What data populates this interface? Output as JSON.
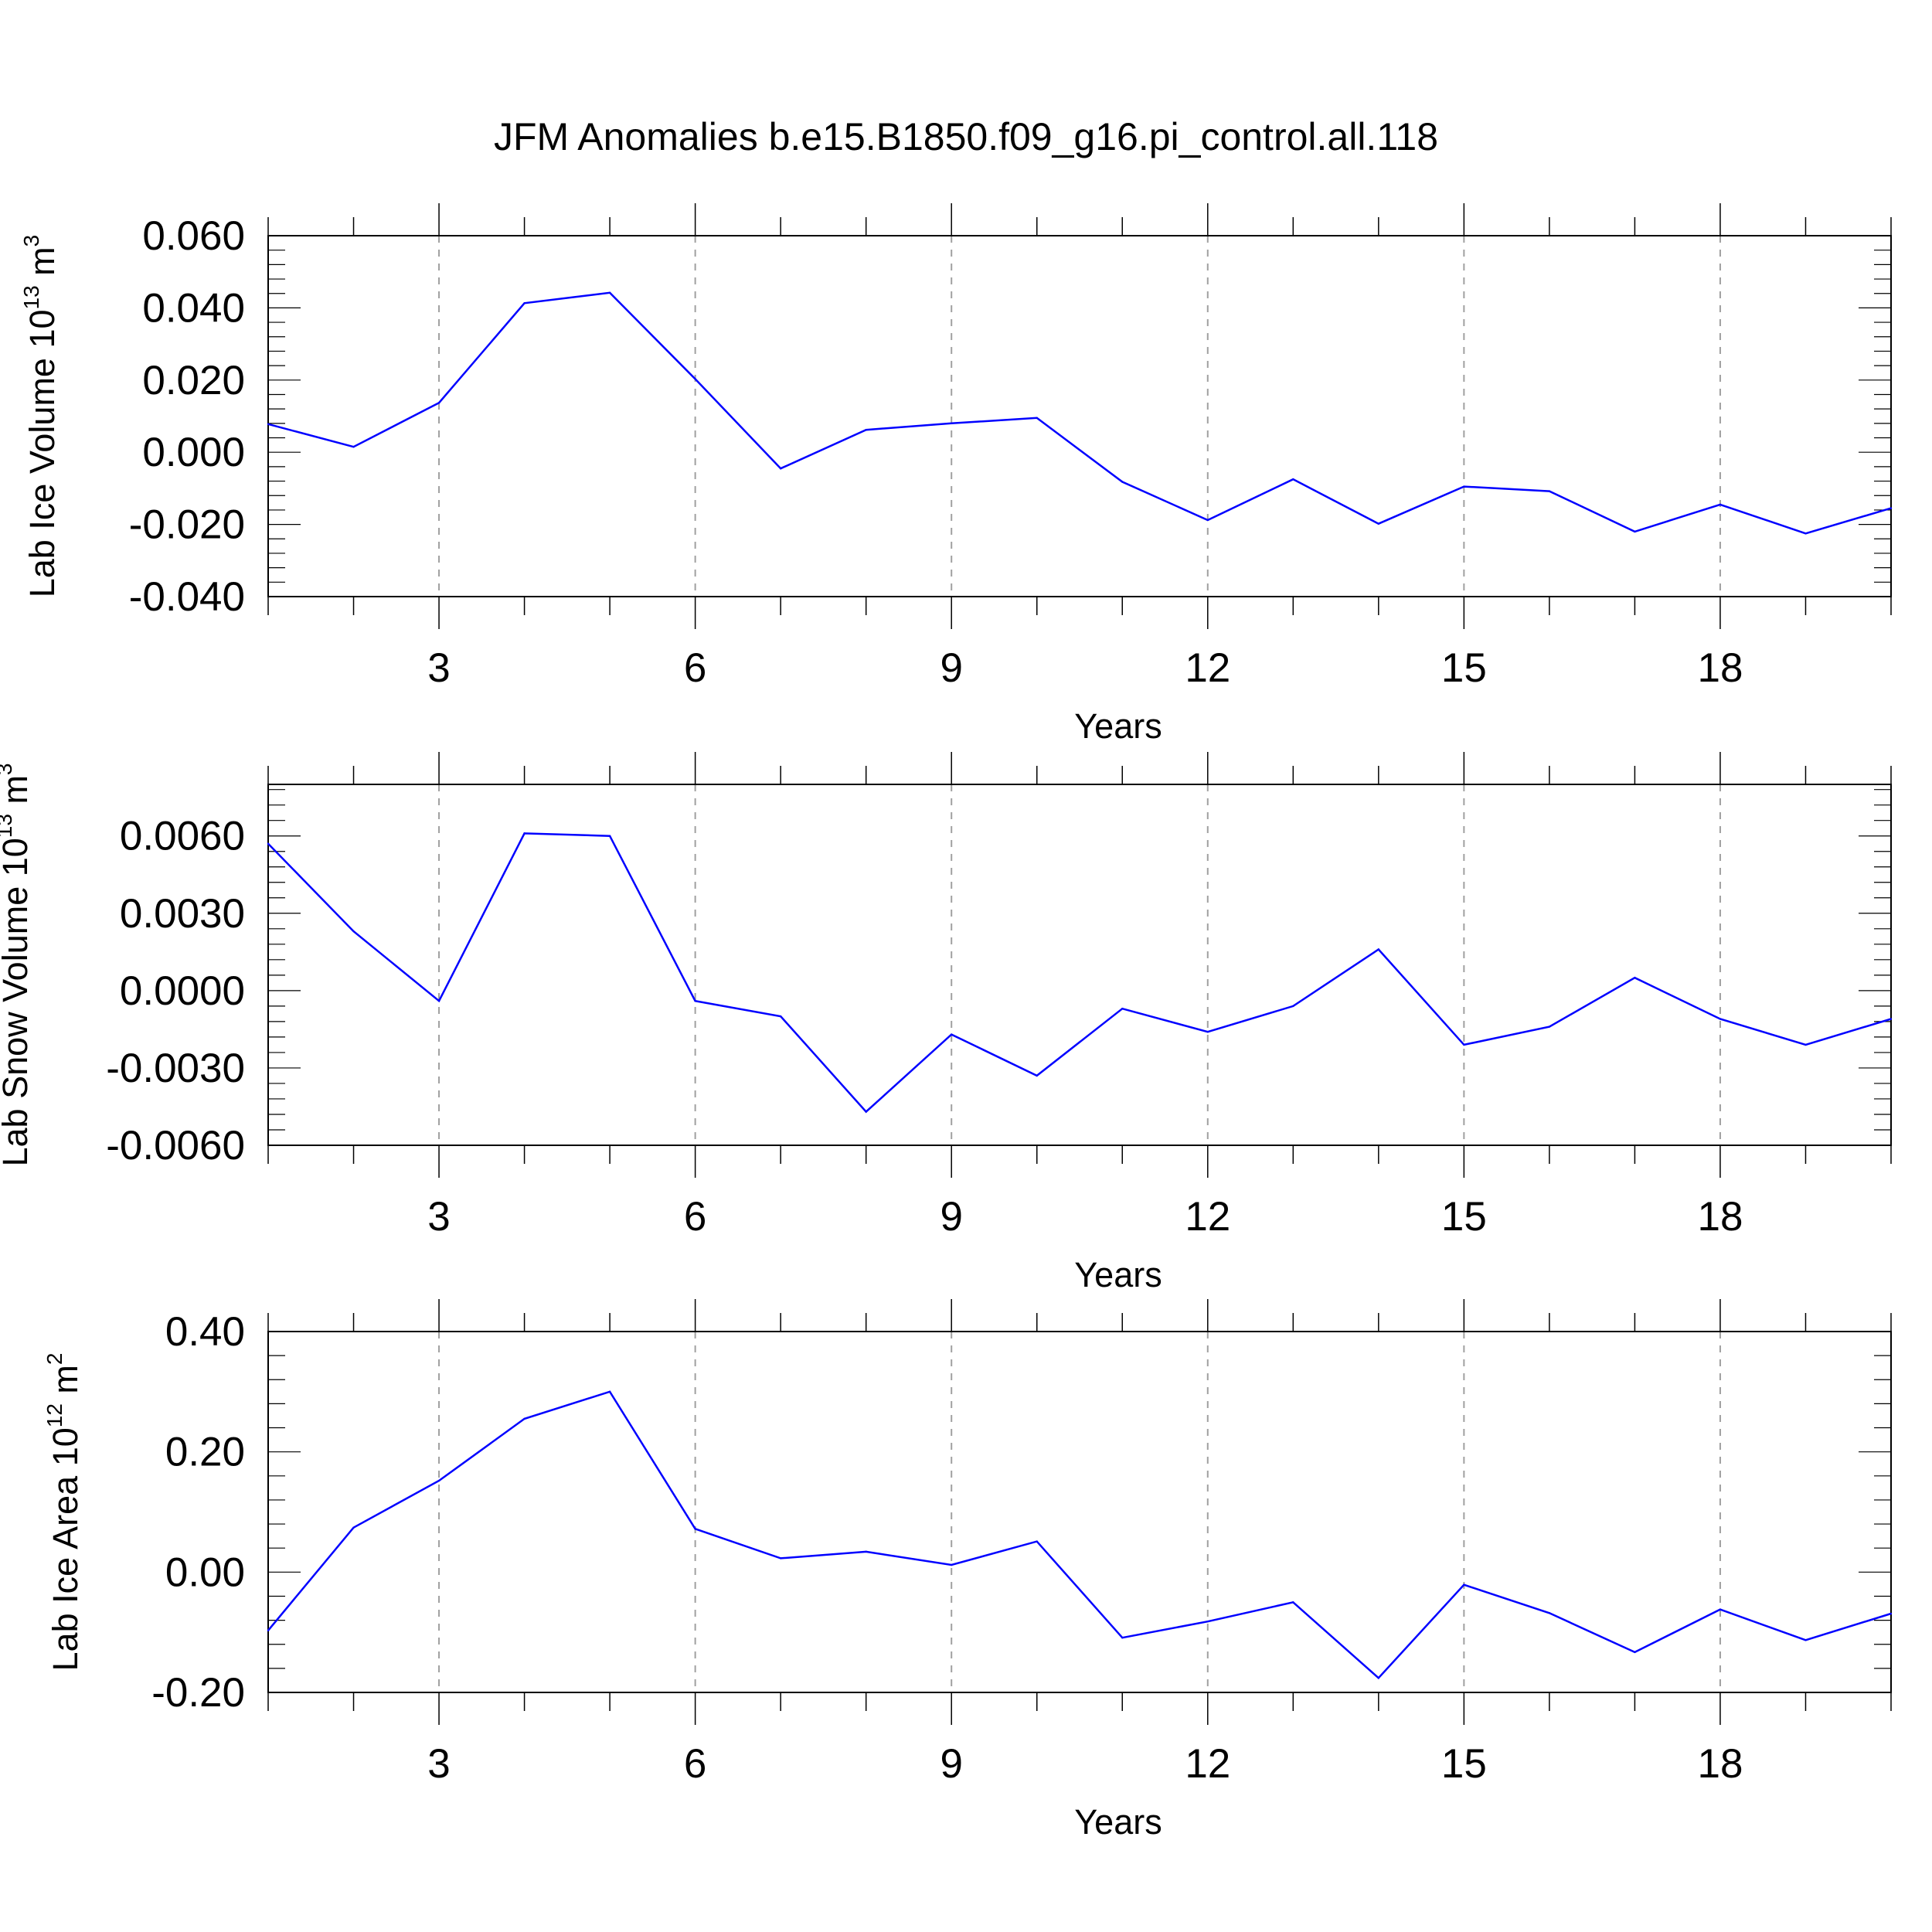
{
  "title": "JFM Anomalies b.e15.B1850.f09_g16.pi_control.all.118",
  "colors": {
    "line": "#0000ff",
    "axis": "#000000",
    "grid": "#a0a0a0"
  },
  "chart_data": [
    {
      "type": "line",
      "xlabel": "Years",
      "ylabel": {
        "prefix": "Lab Ice Volume 10",
        "exponent": "13",
        "unit": " m",
        "unit_exponent": "3"
      },
      "xlim": [
        1,
        20
      ],
      "ylim": [
        -0.04,
        0.06
      ],
      "x_ticks": [
        3,
        6,
        9,
        12,
        15,
        18
      ],
      "y_ticks": [
        -0.04,
        -0.02,
        0.0,
        0.02,
        0.04,
        0.06
      ],
      "y_tick_labels": [
        "-0.040",
        "-0.020",
        "0.000",
        "0.020",
        "0.040",
        "0.060"
      ],
      "grid": "vertical dashed at major x ticks",
      "x": [
        1,
        2,
        3,
        4,
        5,
        6,
        7,
        8,
        9,
        10,
        11,
        12,
        13,
        14,
        15,
        16,
        17,
        18,
        19,
        20
      ],
      "series": [
        {
          "values": [
            0.0078,
            0.0015,
            0.0137,
            0.0413,
            0.0442,
            0.0203,
            -0.0045,
            0.0062,
            0.008,
            0.0095,
            -0.0082,
            -0.0188,
            -0.0075,
            -0.0198,
            -0.0095,
            -0.0108,
            -0.022,
            -0.0145,
            -0.0225,
            -0.0155
          ]
        }
      ]
    },
    {
      "type": "line",
      "xlabel": "Years",
      "ylabel": {
        "prefix": "Lab Snow Volume 10",
        "exponent": "13",
        "unit": " m",
        "unit_exponent": "3"
      },
      "xlim": [
        1,
        20
      ],
      "ylim": [
        -0.006,
        0.008
      ],
      "x_ticks": [
        3,
        6,
        9,
        12,
        15,
        18
      ],
      "y_ticks": [
        -0.006,
        -0.003,
        0.0,
        0.003,
        0.006
      ],
      "y_tick_labels": [
        "-0.0060",
        "-0.0030",
        "0.0000",
        "0.0030",
        "0.0060"
      ],
      "grid": "vertical dashed at major x ticks",
      "x": [
        1,
        2,
        3,
        4,
        5,
        6,
        7,
        8,
        9,
        10,
        11,
        12,
        13,
        14,
        15,
        16,
        17,
        18,
        19,
        20
      ],
      "series": [
        {
          "values": [
            0.0057,
            0.0023,
            -0.0004,
            0.0061,
            0.006,
            -0.0004,
            -0.001,
            -0.0047,
            -0.0017,
            -0.0033,
            -0.0007,
            -0.0016,
            -0.0006,
            0.0016,
            -0.0021,
            -0.0014,
            0.0005,
            -0.0011,
            -0.0021,
            -0.0011
          ]
        }
      ]
    },
    {
      "type": "line",
      "xlabel": "Years",
      "ylabel": {
        "prefix": "Lab Ice Area 10",
        "exponent": "12",
        "unit": " m",
        "unit_exponent": "2"
      },
      "xlim": [
        1,
        20
      ],
      "ylim": [
        -0.2,
        0.4
      ],
      "x_ticks": [
        3,
        6,
        9,
        12,
        15,
        18
      ],
      "y_ticks": [
        -0.2,
        0.0,
        0.2,
        0.4
      ],
      "y_tick_labels": [
        "-0.20",
        "0.00",
        "0.20",
        "0.40"
      ],
      "grid": "vertical dashed at major x ticks",
      "x": [
        1,
        2,
        3,
        4,
        5,
        6,
        7,
        8,
        9,
        10,
        11,
        12,
        13,
        14,
        15,
        16,
        17,
        18,
        19,
        20
      ],
      "series": [
        {
          "values": [
            -0.097,
            0.074,
            0.152,
            0.255,
            0.3,
            0.072,
            0.023,
            0.034,
            0.012,
            0.051,
            -0.109,
            -0.082,
            -0.05,
            -0.176,
            -0.021,
            -0.068,
            -0.133,
            -0.062,
            -0.113,
            -0.069
          ]
        }
      ]
    }
  ]
}
